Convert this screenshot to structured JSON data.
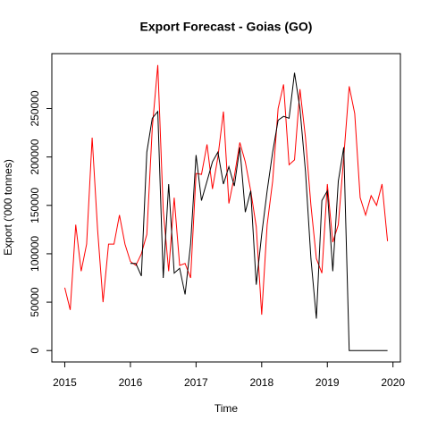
{
  "chart_data": {
    "type": "line",
    "title": "Export Forecast - Goias (GO)",
    "x_label": "Time",
    "y_label": "Export ('000 tonnes)",
    "x": [
      2015,
      2015.083,
      2015.167,
      2015.25,
      2015.333,
      2015.417,
      2015.5,
      2015.583,
      2015.667,
      2015.75,
      2015.833,
      2015.917,
      2016,
      2016.083,
      2016.167,
      2016.25,
      2016.333,
      2016.417,
      2016.5,
      2016.583,
      2016.667,
      2016.75,
      2016.833,
      2016.917,
      2017,
      2017.083,
      2017.167,
      2017.25,
      2017.333,
      2017.417,
      2017.5,
      2017.583,
      2017.667,
      2017.75,
      2017.833,
      2017.917,
      2018,
      2018.083,
      2018.167,
      2018.25,
      2018.333,
      2018.417,
      2018.5,
      2018.583,
      2018.667,
      2018.75,
      2018.833,
      2018.917,
      2019,
      2019.083,
      2019.167,
      2019.25,
      2019.333,
      2019.417,
      2019.5,
      2019.583,
      2019.667,
      2019.75,
      2019.833,
      2019.917
    ],
    "series": [
      {
        "color": "#ff0000",
        "values": [
          65000,
          42000,
          130000,
          82000,
          110000,
          220000,
          125000,
          50000,
          110000,
          110000,
          140000,
          110000,
          92000,
          88000,
          100000,
          120000,
          230000,
          295000,
          145000,
          82000,
          158000,
          88000,
          90000,
          75000,
          183000,
          182000,
          213000,
          167000,
          200000,
          247000,
          152000,
          180000,
          215000,
          195000,
          165000,
          128000,
          37000,
          130000,
          175000,
          250000,
          275000,
          192000,
          197000,
          270000,
          220000,
          150000,
          95000,
          80000,
          172000,
          112000,
          130000,
          200000,
          273000,
          245000,
          158000,
          140000,
          160000,
          150000,
          172000,
          113000
        ]
      },
      {
        "color": "#000000",
        "values": [
          null,
          null,
          null,
          null,
          null,
          null,
          null,
          null,
          null,
          null,
          null,
          null,
          90000,
          90000,
          77000,
          205000,
          240000,
          247000,
          75000,
          172000,
          80000,
          85000,
          58000,
          110000,
          202000,
          155000,
          175000,
          195000,
          205000,
          172000,
          190000,
          170000,
          210000,
          143000,
          165000,
          68000,
          120000,
          165000,
          205000,
          238000,
          242000,
          240000,
          287000,
          250000,
          185000,
          95000,
          33000,
          155000,
          165000,
          82000,
          175000,
          210000,
          0,
          0,
          0,
          0,
          0,
          0,
          0,
          0
        ]
      }
    ],
    "xlim": [
      2014.803,
      2020.113
    ],
    "ylim": [
      -11800,
      306800
    ],
    "xticks": [
      2015,
      2016,
      2017,
      2018,
      2019,
      2020
    ],
    "yticks": [
      0,
      50000,
      100000,
      150000,
      200000,
      250000
    ]
  }
}
